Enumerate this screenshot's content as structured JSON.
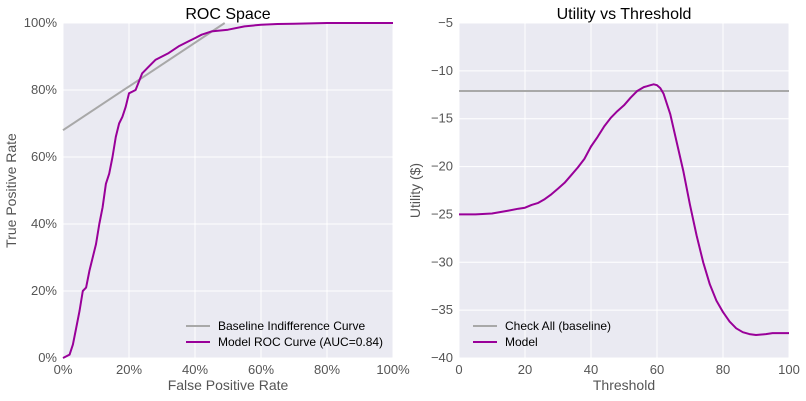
{
  "chart_data": [
    {
      "type": "line",
      "title": "ROC Space",
      "xlabel": "False Positive Rate",
      "ylabel": "True Positive Rate",
      "xlim": [
        0,
        1
      ],
      "ylim": [
        0,
        1
      ],
      "xticks": [
        "0%",
        "20%",
        "40%",
        "60%",
        "80%",
        "100%"
      ],
      "yticks": [
        "0%",
        "20%",
        "40%",
        "60%",
        "80%",
        "100%"
      ],
      "grid": true,
      "legend_position": "bottom-right",
      "series": [
        {
          "name": "Baseline Indifference Curve",
          "color": "#a8a8a8",
          "x": [
            0,
            0.49
          ],
          "y": [
            0.68,
            1.0
          ]
        },
        {
          "name": "Model ROC Curve (AUC=0.84)",
          "color": "#990099",
          "x": [
            0,
            0.02,
            0.03,
            0.04,
            0.05,
            0.06,
            0.07,
            0.08,
            0.09,
            0.1,
            0.11,
            0.12,
            0.13,
            0.14,
            0.15,
            0.16,
            0.17,
            0.18,
            0.19,
            0.2,
            0.22,
            0.24,
            0.26,
            0.28,
            0.3,
            0.32,
            0.35,
            0.38,
            0.4,
            0.42,
            0.45,
            0.5,
            0.55,
            0.6,
            0.65,
            0.7,
            0.8,
            1.0
          ],
          "y": [
            0,
            0.01,
            0.04,
            0.09,
            0.14,
            0.2,
            0.21,
            0.26,
            0.3,
            0.34,
            0.4,
            0.45,
            0.52,
            0.55,
            0.6,
            0.66,
            0.7,
            0.72,
            0.75,
            0.79,
            0.8,
            0.85,
            0.87,
            0.89,
            0.9,
            0.91,
            0.93,
            0.945,
            0.955,
            0.965,
            0.975,
            0.98,
            0.99,
            0.995,
            0.997,
            0.998,
            1.0,
            1.0
          ]
        }
      ]
    },
    {
      "type": "line",
      "title": "Utility vs Threshold",
      "xlabel": "Threshold",
      "ylabel": "Utility ($)",
      "xlim": [
        0,
        100
      ],
      "ylim": [
        -40,
        -5
      ],
      "xticks": [
        "0",
        "20",
        "40",
        "60",
        "80",
        "100"
      ],
      "yticks": [
        "−5",
        "−10",
        "−15",
        "−20",
        "−25",
        "−30",
        "−35",
        "−40"
      ],
      "grid": true,
      "legend_position": "bottom-left",
      "series": [
        {
          "name": "Check All (baseline)",
          "color": "#a8a8a8",
          "x": [
            0,
            100
          ],
          "y": [
            -12.1,
            -12.1
          ]
        },
        {
          "name": "Model",
          "color": "#990099",
          "x": [
            0,
            5,
            10,
            15,
            18,
            20,
            22,
            24,
            26,
            28,
            30,
            32,
            34,
            36,
            38,
            40,
            42,
            44,
            46,
            48,
            50,
            52,
            54,
            56,
            57,
            58,
            59,
            60,
            61,
            62,
            64,
            66,
            68,
            70,
            72,
            74,
            76,
            78,
            80,
            82,
            84,
            86,
            88,
            90,
            93,
            95,
            100
          ],
          "y": [
            -25.0,
            -25.0,
            -24.9,
            -24.6,
            -24.4,
            -24.3,
            -24.0,
            -23.8,
            -23.4,
            -22.9,
            -22.3,
            -21.7,
            -20.9,
            -20.1,
            -19.2,
            -17.9,
            -16.9,
            -15.8,
            -14.9,
            -14.2,
            -13.6,
            -12.8,
            -12.1,
            -11.7,
            -11.6,
            -11.5,
            -11.4,
            -11.5,
            -11.8,
            -12.4,
            -14.5,
            -17.5,
            -20.5,
            -24.0,
            -27.2,
            -30.0,
            -32.3,
            -34.0,
            -35.2,
            -36.2,
            -36.9,
            -37.3,
            -37.5,
            -37.6,
            -37.5,
            -37.4,
            -37.4
          ]
        }
      ]
    }
  ]
}
